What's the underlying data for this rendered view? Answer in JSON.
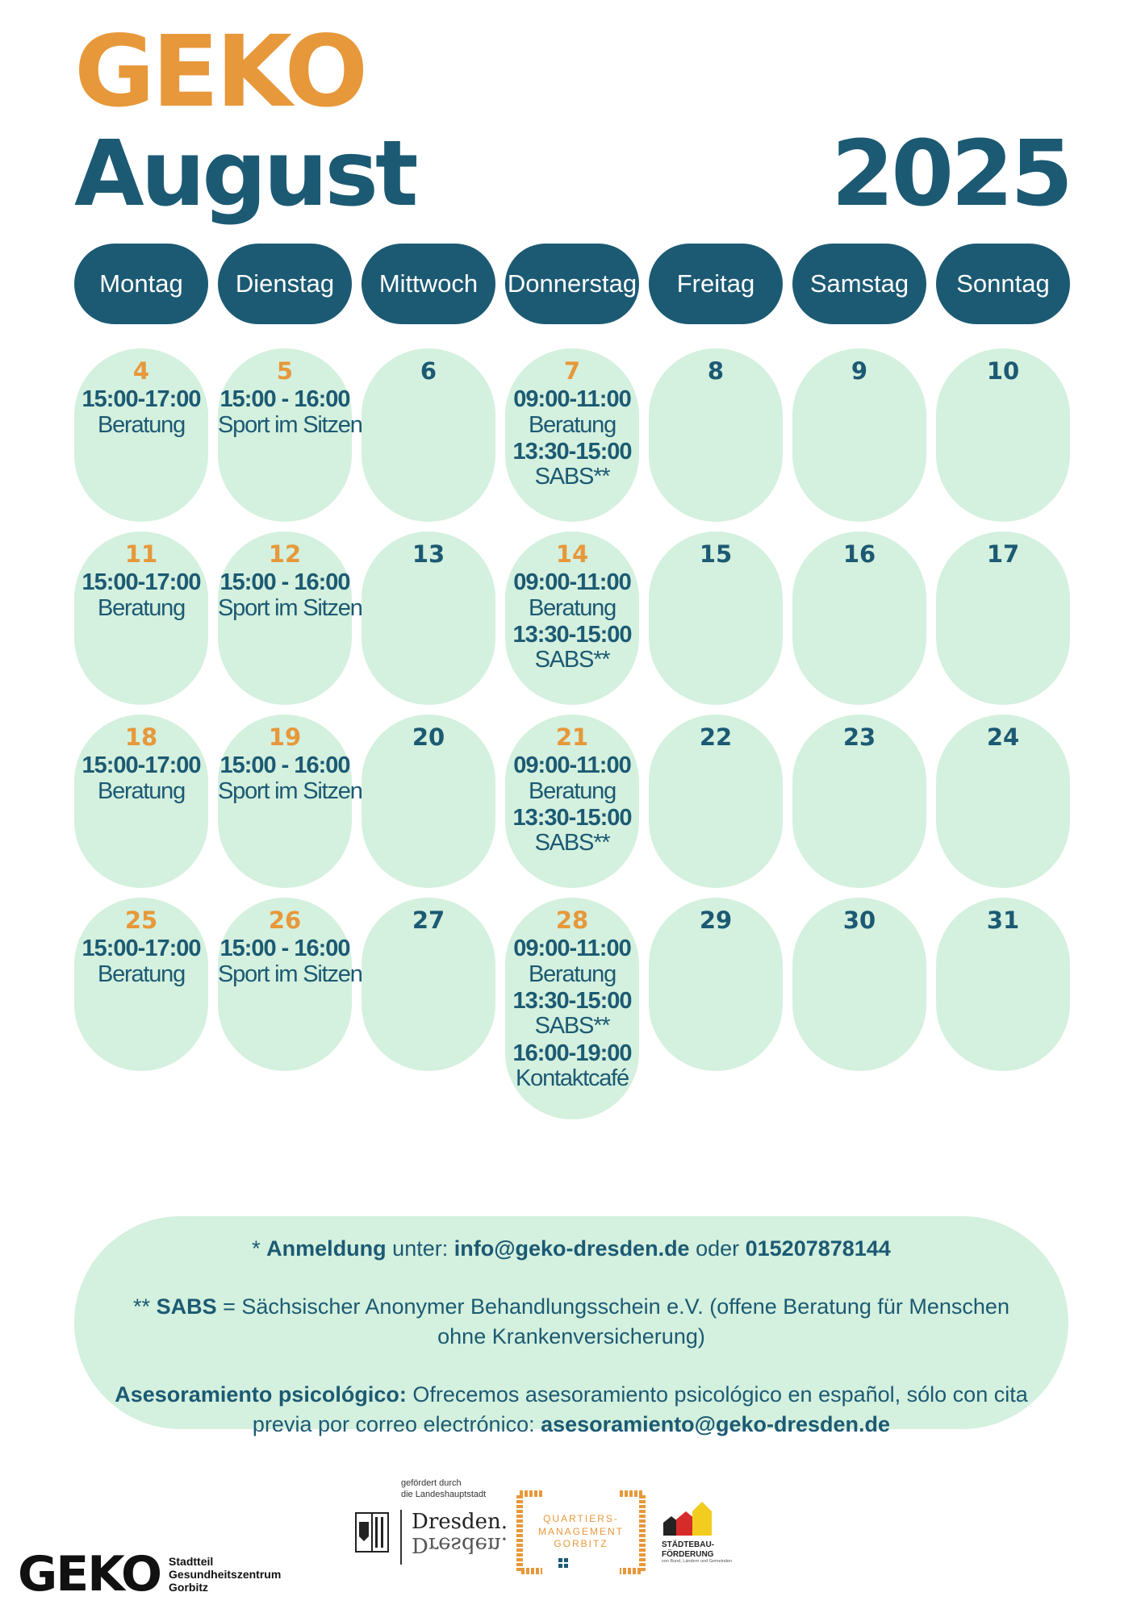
{
  "header": {
    "brand": "GEKO",
    "month": "August",
    "year": "2025"
  },
  "weekdays": [
    "Montag",
    "Dienstag",
    "Mittwoch",
    "Donnerstag",
    "Freitag",
    "Samstag",
    "Sonntag"
  ],
  "weeks": [
    [
      {
        "day": "4",
        "highlight": true,
        "events": [
          {
            "time": "15:00-17:00",
            "name": "Beratung"
          }
        ]
      },
      {
        "day": "5",
        "highlight": true,
        "events": [
          {
            "time": "15:00 - 16:00",
            "name": "Sport im Sitzen"
          }
        ]
      },
      {
        "day": "6",
        "highlight": false,
        "events": []
      },
      {
        "day": "7",
        "highlight": true,
        "events": [
          {
            "time": "09:00-11:00",
            "name": "Beratung"
          },
          {
            "time": "13:30-15:00",
            "name": "SABS**"
          }
        ]
      },
      {
        "day": "8",
        "highlight": false,
        "events": []
      },
      {
        "day": "9",
        "highlight": false,
        "events": []
      },
      {
        "day": "10",
        "highlight": false,
        "events": []
      }
    ],
    [
      {
        "day": "11",
        "highlight": true,
        "events": [
          {
            "time": "15:00-17:00",
            "name": "Beratung"
          }
        ]
      },
      {
        "day": "12",
        "highlight": true,
        "events": [
          {
            "time": "15:00 - 16:00",
            "name": "Sport im Sitzen"
          }
        ]
      },
      {
        "day": "13",
        "highlight": false,
        "events": []
      },
      {
        "day": "14",
        "highlight": true,
        "events": [
          {
            "time": "09:00-11:00",
            "name": "Beratung"
          },
          {
            "time": "13:30-15:00",
            "name": "SABS**"
          }
        ]
      },
      {
        "day": "15",
        "highlight": false,
        "events": []
      },
      {
        "day": "16",
        "highlight": false,
        "events": []
      },
      {
        "day": "17",
        "highlight": false,
        "events": []
      }
    ],
    [
      {
        "day": "18",
        "highlight": true,
        "events": [
          {
            "time": "15:00-17:00",
            "name": "Beratung"
          }
        ]
      },
      {
        "day": "19",
        "highlight": true,
        "events": [
          {
            "time": "15:00 - 16:00",
            "name": "Sport im Sitzen"
          }
        ]
      },
      {
        "day": "20",
        "highlight": false,
        "events": []
      },
      {
        "day": "21",
        "highlight": true,
        "events": [
          {
            "time": "09:00-11:00",
            "name": "Beratung"
          },
          {
            "time": "13:30-15:00",
            "name": "SABS**"
          }
        ]
      },
      {
        "day": "22",
        "highlight": false,
        "events": []
      },
      {
        "day": "23",
        "highlight": false,
        "events": []
      },
      {
        "day": "24",
        "highlight": false,
        "events": []
      }
    ],
    [
      {
        "day": "25",
        "highlight": true,
        "events": [
          {
            "time": "15:00-17:00",
            "name": "Beratung"
          }
        ]
      },
      {
        "day": "26",
        "highlight": true,
        "events": [
          {
            "time": "15:00 - 16:00",
            "name": "Sport im Sitzen"
          }
        ]
      },
      {
        "day": "27",
        "highlight": false,
        "events": []
      },
      {
        "day": "28",
        "highlight": true,
        "events": [
          {
            "time": "09:00-11:00",
            "name": "Beratung"
          },
          {
            "time": "13:30-15:00",
            "name": "SABS**"
          },
          {
            "time": "16:00-19:00",
            "name": "Kontaktcafé"
          }
        ]
      },
      {
        "day": "29",
        "highlight": false,
        "events": []
      },
      {
        "day": "30",
        "highlight": false,
        "events": []
      },
      {
        "day": "31",
        "highlight": false,
        "events": []
      }
    ]
  ],
  "info": {
    "registration_prefix": "* ",
    "registration_label": "Anmeldung",
    "registration_under": " unter: ",
    "email": "info@geko-dresden.de",
    "or": " oder ",
    "phone": "015207878144",
    "sabs_prefix": "**  ",
    "sabs_label": "SABS",
    "sabs_text": " = Sächsischer Anonymer Behandlungsschein e.V. (offene Beratung für Menschen ohne Krankenversicherung)",
    "psych_label": "Asesoramiento psicológico:",
    "psych_text": " Ofrecemos asesoramiento psicológico en español, sólo con cita previa por correo electrónico: ",
    "psych_email": "asesoramiento@geko-dresden.de"
  },
  "footer": {
    "geko_logo": "GEKO",
    "geko_sub": [
      "Stadtteil",
      "Gesundheitszentrum",
      "Gorbitz"
    ],
    "funded_by": [
      "gefördert durch",
      "die Landeshauptstadt"
    ],
    "dresden": "Dresden.",
    "qm_lines": [
      "QUARTIERS-",
      "MANAGEMENT",
      "GORBITZ"
    ],
    "sbf_lines": [
      "STÄDTEBAU-",
      "FÖRDERUNG"
    ],
    "sbf_small": "von Bund, Ländern und Gemeinden"
  },
  "colors": {
    "accent": "#e7983a",
    "primary": "#1c5a73",
    "cell": "#d4f0de"
  }
}
